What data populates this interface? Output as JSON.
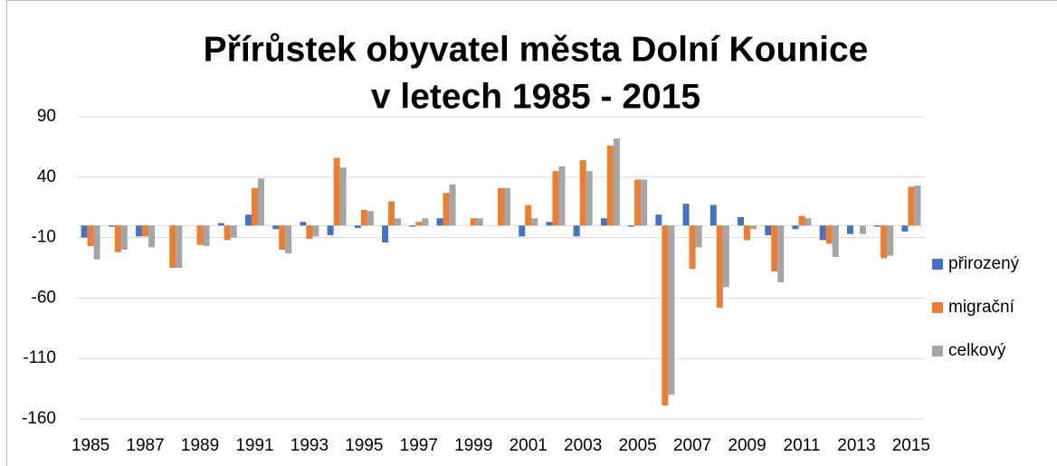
{
  "chart_data": {
    "type": "bar",
    "title": [
      "Přírůstek obyvatel města Dolní Kounice",
      "v letech 1985 - 2015"
    ],
    "categories": [
      "1985",
      null,
      "1987",
      null,
      "1989",
      null,
      "1991",
      null,
      "1993",
      null,
      "1995",
      null,
      "1997",
      null,
      "1999",
      null,
      "2001",
      null,
      "2003",
      null,
      "2005",
      null,
      "2007",
      null,
      "2009",
      null,
      "2011",
      null,
      "2013",
      null,
      "2015"
    ],
    "series": [
      {
        "name": "přirozený",
        "color": "#4472c4",
        "values": [
          -10,
          -1,
          -9,
          0,
          0,
          2,
          9,
          -3,
          3,
          -8,
          -2,
          -14,
          -1,
          6,
          0,
          0,
          -9,
          3,
          -9,
          6,
          -1,
          9,
          18,
          17,
          7,
          -8,
          -3,
          -12,
          -7,
          -1,
          -5
        ]
      },
      {
        "name": "migrační",
        "color": "#ed7d31",
        "values": [
          -17,
          -22,
          -9,
          -35,
          -16,
          -12,
          31,
          -20,
          -11,
          56,
          13,
          20,
          3,
          27,
          6,
          31,
          17,
          45,
          54,
          66,
          38,
          -149,
          -36,
          -68,
          -12,
          -38,
          8,
          -15,
          0,
          -27,
          32
        ]
      },
      {
        "name": "celkový",
        "color": "#a5a5a5",
        "values": [
          -28,
          -20,
          -18,
          -35,
          -17,
          -10,
          39,
          -23,
          -9,
          48,
          12,
          6,
          6,
          34,
          6,
          31,
          6,
          49,
          45,
          72,
          38,
          -140,
          -18,
          -51,
          -3,
          -47,
          6,
          -26,
          -7,
          -25,
          33
        ]
      }
    ],
    "ylim": [
      -160,
      90
    ],
    "yticks": [
      -160,
      -110,
      -60,
      -10,
      40,
      90
    ],
    "grid": true,
    "legend": "right"
  }
}
